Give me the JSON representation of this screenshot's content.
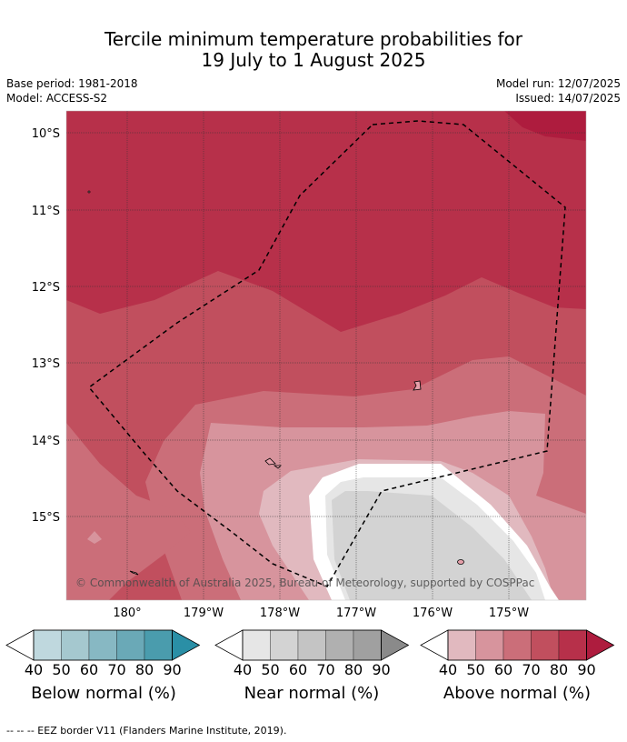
{
  "header": {
    "title_line1": "Tercile minimum temperature probabilities for",
    "title_line2": "19 July to 1 August 2025",
    "base_period": "Base period: 1981-2018",
    "model": "Model: ACCESS-S2",
    "model_run": "Model run: 12/07/2025",
    "issued": "Issued: 14/07/2025"
  },
  "map": {
    "lat_labels": [
      "10°S",
      "11°S",
      "12°S",
      "13°S",
      "14°S",
      "15°S"
    ],
    "lon_labels": [
      "180°",
      "179°W",
      "178°W",
      "177°W",
      "176°W",
      "175°W"
    ],
    "copyright": "© Commonwealth of Australia 2025, Bureau of Meteorology, supported by COSPPac",
    "colors": {
      "above_40": "#e1b9bf",
      "above_50": "#d7949d",
      "above_60": "#cb6e79",
      "above_70": "#c14f5e",
      "above_80": "#b7304a",
      "above_90": "#ae1c3e",
      "near_40": "#e6e6e6",
      "near_50": "#d3d3d3",
      "near_60": "#c4c4c4",
      "near_70": "#b0b0b0",
      "near_80": "#a0a0a0",
      "near_90": "#8a8a8a",
      "below_40": "#bfd8de",
      "below_50": "#a5c8cf",
      "below_60": "#87b8c3",
      "below_70": "#6aa9b7",
      "below_80": "#4a9cad",
      "below_90": "#2a8fa6"
    }
  },
  "colorbars": [
    {
      "label": "Below normal (%)",
      "ticks": [
        "40",
        "50",
        "60",
        "70",
        "80",
        "90"
      ]
    },
    {
      "label": "Near normal (%)",
      "ticks": [
        "40",
        "50",
        "60",
        "70",
        "80",
        "90"
      ]
    },
    {
      "label": "Above normal (%)",
      "ticks": [
        "40",
        "50",
        "60",
        "70",
        "80",
        "90"
      ]
    }
  ],
  "footer": "--  --  -- EEZ border V11 (Flanders Marine Institute, 2019)."
}
